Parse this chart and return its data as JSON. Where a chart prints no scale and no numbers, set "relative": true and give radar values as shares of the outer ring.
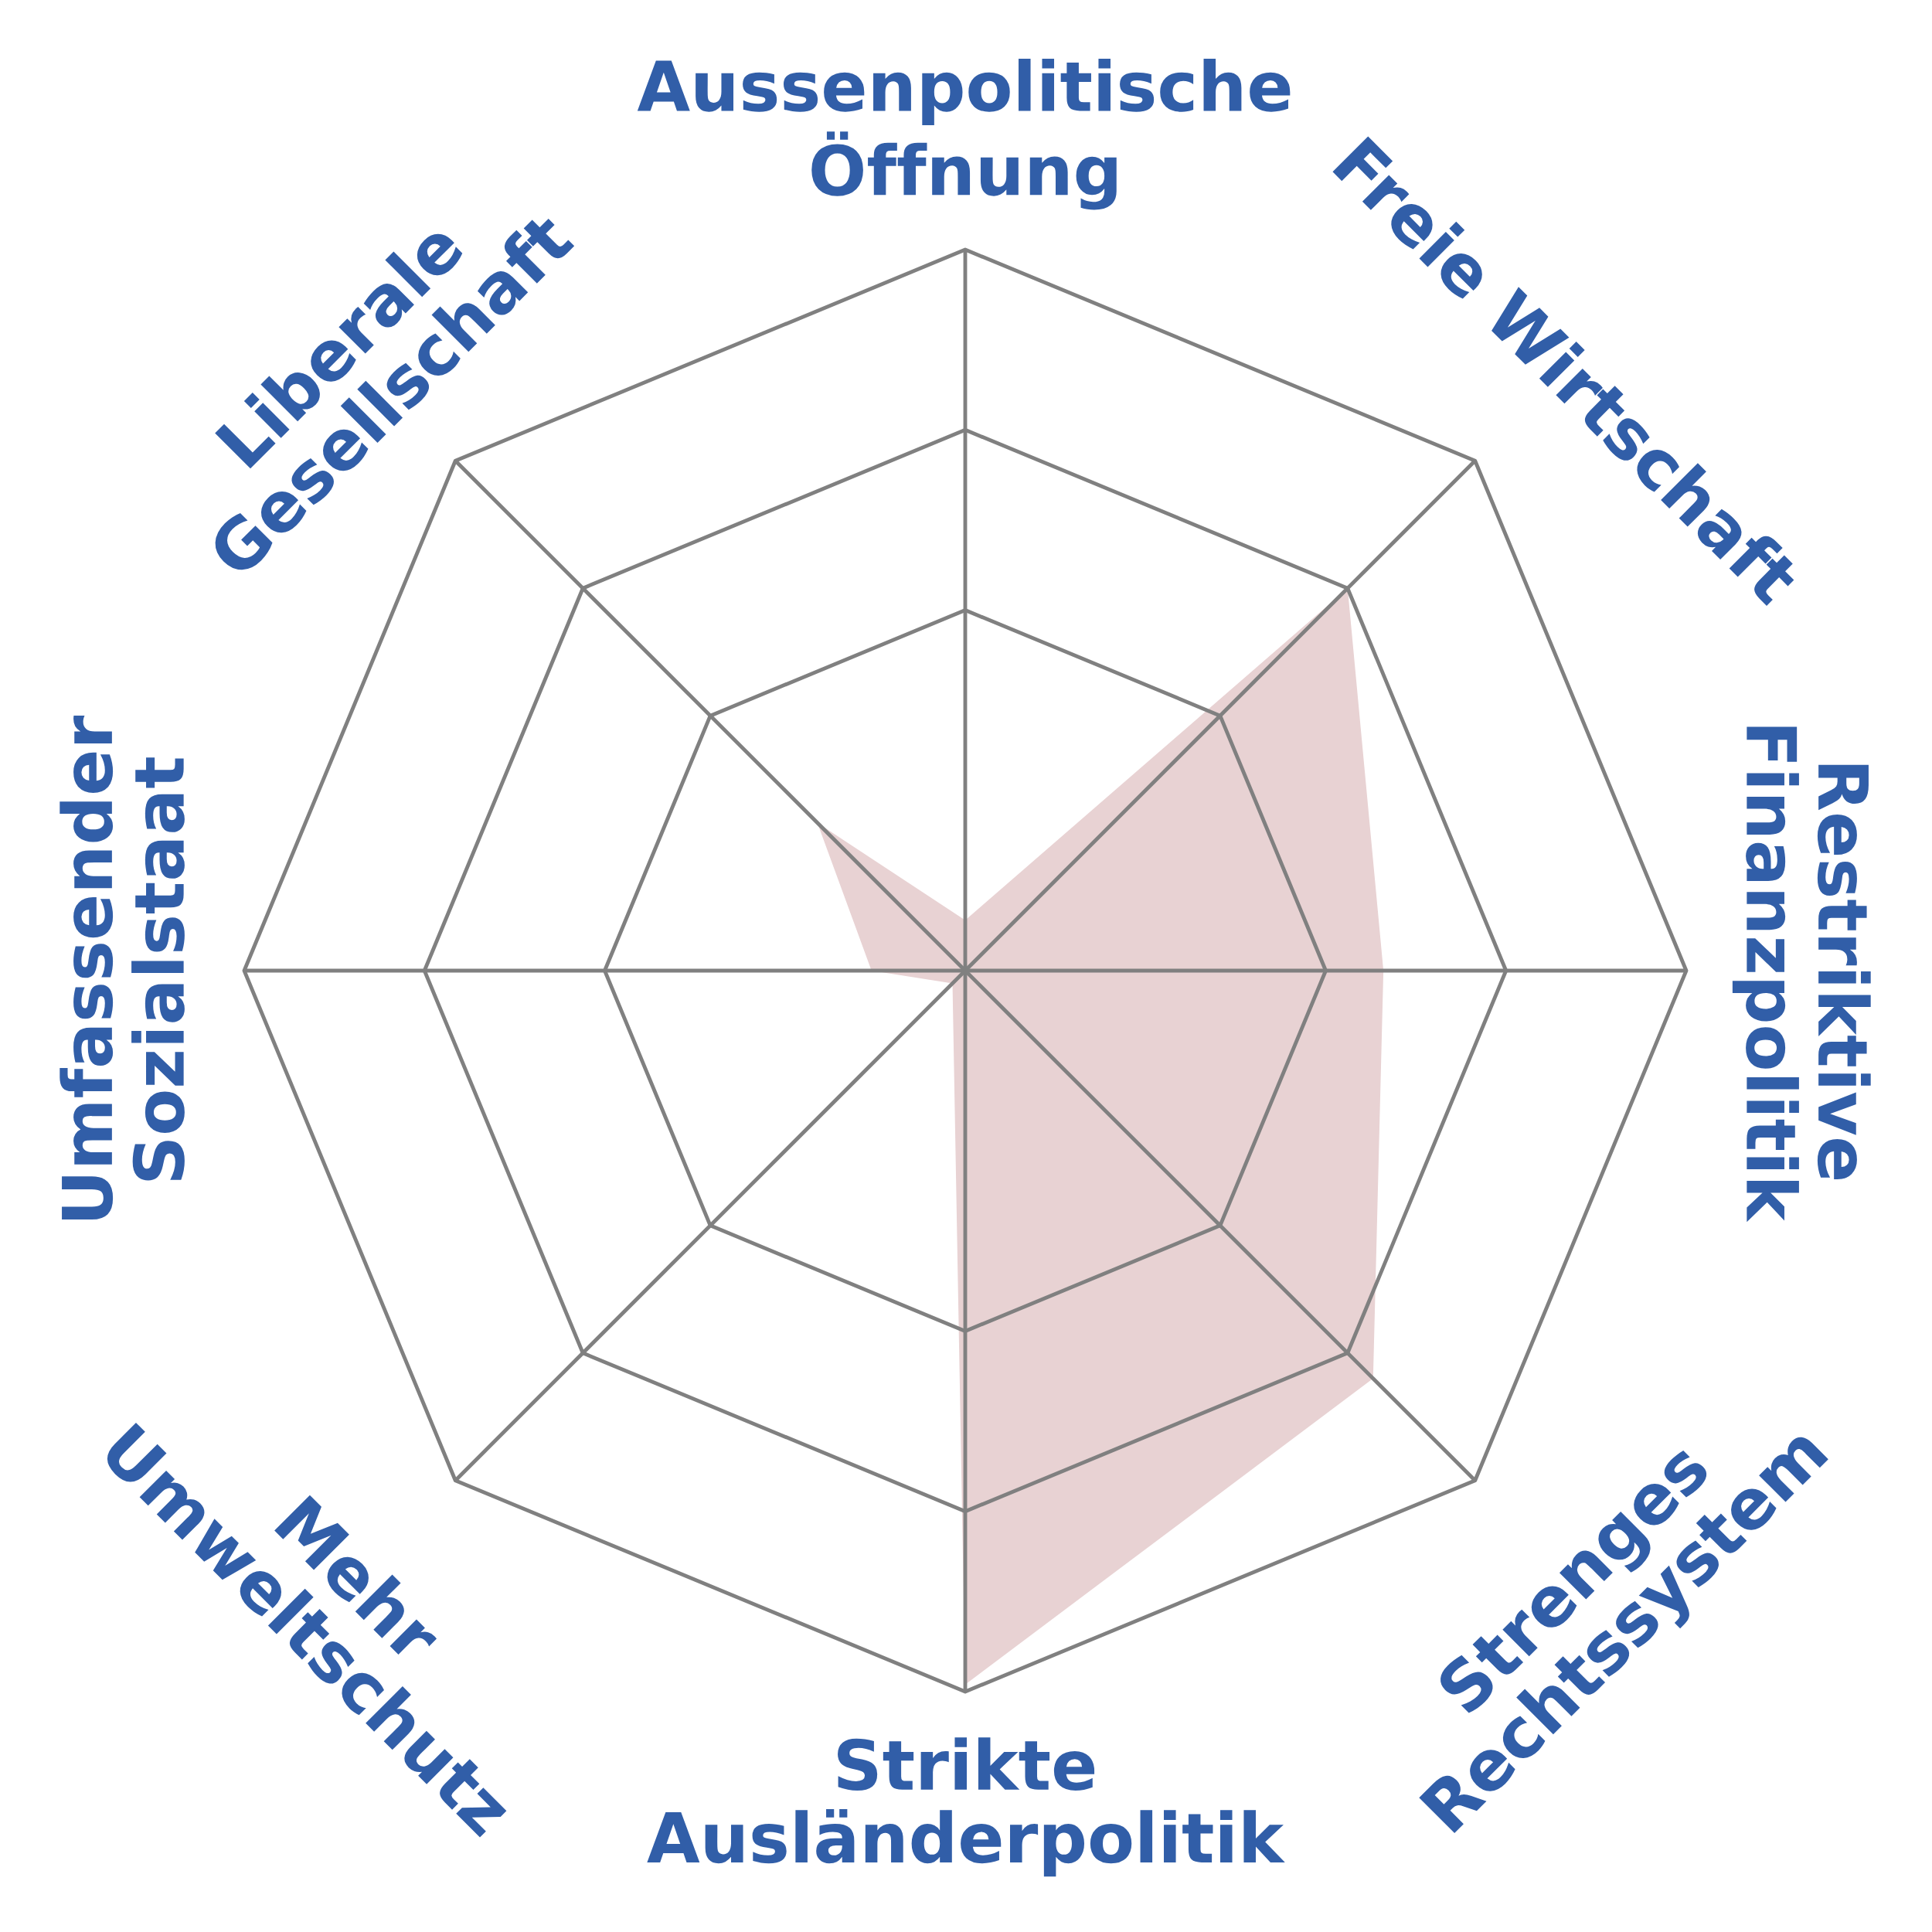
{
  "chart_data": {
    "type": "radar",
    "relative": true,
    "categories": [
      "Aussenpolitische\nÖffnung",
      "Freie Wirtschaft",
      "Restriktive\nFinanzpolitik",
      "Strenges\nRechtssystem",
      "Strikte\nAusländerpolitik",
      "Mehr\nUmweltschutz",
      "Umfassender\nSozialstaat",
      "Liberale\nGesellschaft"
    ],
    "series": [
      {
        "color": "#e8d2d3",
        "values": [
          0.07,
          0.75,
          0.58,
          0.8,
          0.99,
          0.025,
          0.13,
          0.29
        ]
      }
    ],
    "grid": true
  }
}
